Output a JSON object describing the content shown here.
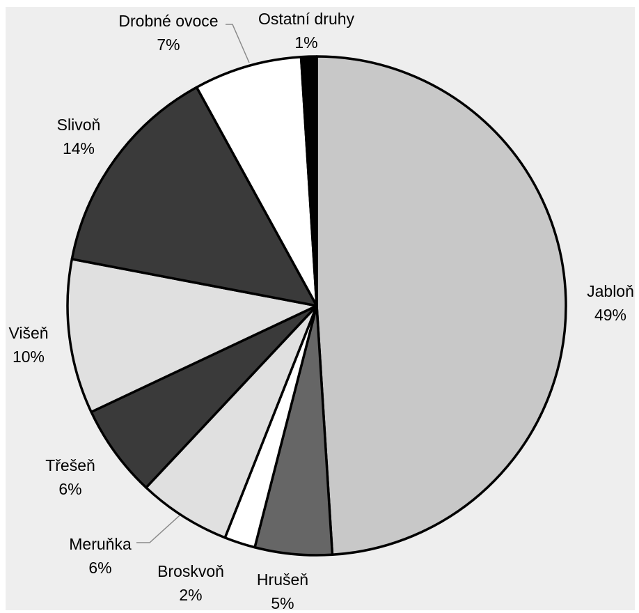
{
  "chart_data": {
    "type": "pie",
    "title": "",
    "slices": [
      {
        "name": "Jabloň",
        "value": 49,
        "label": "49%",
        "color": "#c8c8c8"
      },
      {
        "name": "Hrušeň",
        "value": 5,
        "label": "5%",
        "color": "#666666"
      },
      {
        "name": "Broskvoň",
        "value": 2,
        "label": "2%",
        "color": "#ffffff"
      },
      {
        "name": "Meruňka",
        "value": 6,
        "label": "6%",
        "color": "#e0e0e0"
      },
      {
        "name": "Třešeň",
        "value": 6,
        "label": "6%",
        "color": "#3a3a3a"
      },
      {
        "name": "Višeň",
        "value": 10,
        "label": "10%",
        "color": "#e0e0e0"
      },
      {
        "name": "Slivoň",
        "value": 14,
        "label": "14%",
        "color": "#3a3a3a"
      },
      {
        "name": "Drobné ovoce",
        "value": 7,
        "label": "7%",
        "color": "#ffffff"
      },
      {
        "name": "Ostatní druhy",
        "value": 1,
        "label": "1%",
        "color": "#000000"
      }
    ],
    "background_color": "#eeeeee",
    "stroke_color": "#000000"
  }
}
